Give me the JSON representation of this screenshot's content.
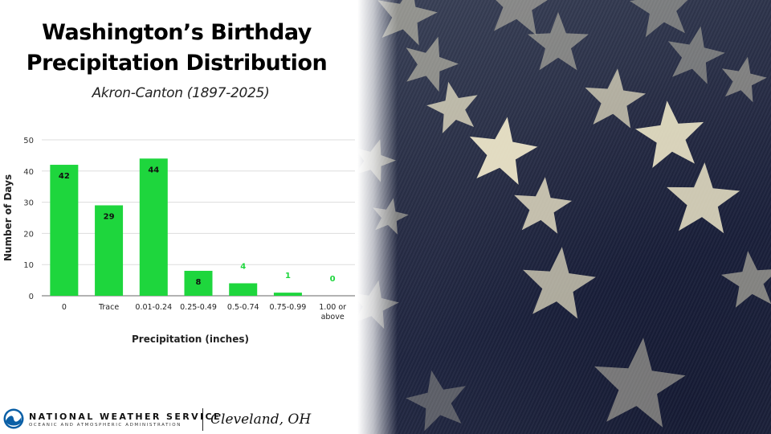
{
  "title_line1": "Washington’s Birthday",
  "title_line2": "Precipitation Distribution",
  "subtitle": "Akron-Canton (1897-2025)",
  "footer": {
    "agency": "NATIONAL WEATHER SERVICE",
    "agency_sub": "OCEANIC AND ATMOSPHERIC ADMINISTRATION",
    "office": "Cleveland, OH",
    "logo_icon": "noaa-logo-icon"
  },
  "colors": {
    "bar": "#1ed63d",
    "outside_label": "#1ed63d",
    "grid": "#dddddd"
  },
  "chart_data": {
    "type": "bar",
    "title": "",
    "xlabel": "Precipitation (inches)",
    "ylabel": "Number of Days",
    "categories": [
      "0",
      "Trace",
      "0.01-0.24",
      "0.25-0.49",
      "0.5-0.74",
      "0.75-0.99",
      "1.00 or above"
    ],
    "values": [
      42,
      29,
      44,
      8,
      4,
      1,
      0
    ],
    "ylim": [
      0,
      50
    ],
    "yticks": [
      "0",
      "10",
      "20",
      "30",
      "40",
      "50"
    ],
    "grid": true,
    "legend": "none"
  }
}
